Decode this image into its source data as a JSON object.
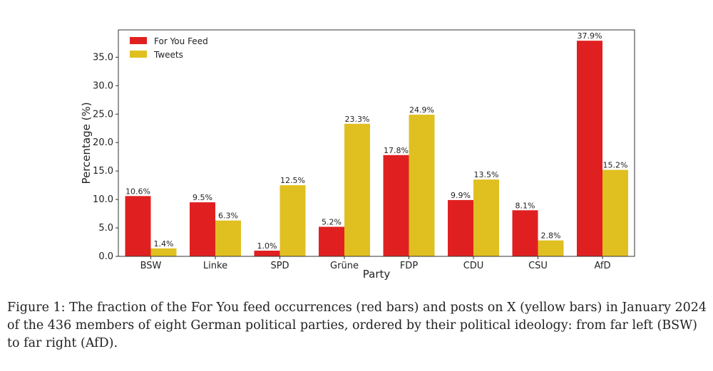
{
  "chart_data": {
    "type": "bar",
    "categories": [
      "BSW",
      "Linke",
      "SPD",
      "Grüne",
      "FDP",
      "CDU",
      "CSU",
      "AfD"
    ],
    "series": [
      {
        "name": "For You Feed",
        "color": "#e02020",
        "values": [
          10.6,
          9.5,
          1.0,
          5.2,
          17.8,
          9.9,
          8.1,
          37.9
        ],
        "labels": [
          "10.6%",
          "9.5%",
          "1.0%",
          "5.2%",
          "17.8%",
          "9.9%",
          "8.1%",
          "37.9%"
        ]
      },
      {
        "name": "Tweets",
        "color": "#e0c020",
        "values": [
          1.4,
          6.3,
          12.5,
          23.3,
          24.9,
          13.5,
          2.8,
          15.2
        ],
        "labels": [
          "1.4%",
          "6.3%",
          "12.5%",
          "23.3%",
          "24.9%",
          "13.5%",
          "2.8%",
          "15.2%"
        ]
      }
    ],
    "xlabel": "Party",
    "ylabel": "Percentage (%)",
    "ylim": [
      0,
      39.8
    ],
    "yticks": [
      0,
      5,
      10,
      15,
      20,
      25,
      30,
      35
    ],
    "ytick_labels": [
      "0.0",
      "5.0",
      "10.0",
      "15.0",
      "20.0",
      "25.0",
      "30.0",
      "35.0"
    ],
    "legend_position": "upper-left",
    "grid": false
  },
  "caption": "Figure 1: The fraction of the For You feed occurrences (red bars) and posts on X (yellow bars) in January 2024 of the 436 members of eight German political parties, ordered by their political ideology: from far left (BSW) to far right (AfD)."
}
